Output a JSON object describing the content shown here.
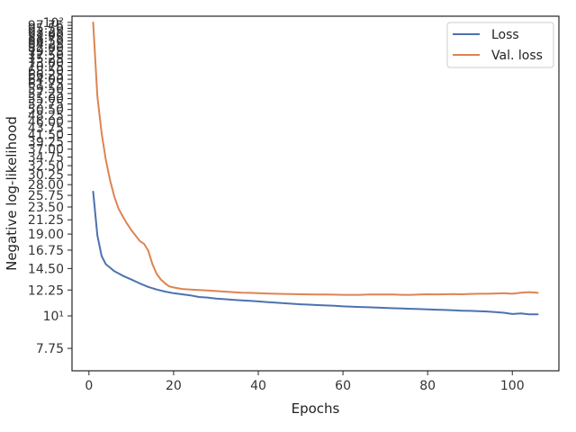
{
  "chart_data": {
    "type": "line",
    "xlabel": "Epochs",
    "ylabel": "Negative log-likelihood",
    "xlim": [
      -4,
      111
    ],
    "ylim": [
      6.5,
      105
    ],
    "yscale": "log",
    "grid": false,
    "legend_position": "top-right",
    "x_ticks": [
      "0",
      "20",
      "40",
      "60",
      "80",
      "100"
    ],
    "y_ticks": [
      "7.75",
      "10¹",
      "12.25",
      "14.50",
      "16.75",
      "19.00",
      "21.25",
      "23.50",
      "25.75",
      "28.00",
      "30.25",
      "32.50",
      "34.75",
      "37.00",
      "39.25",
      "41.50",
      "43.75",
      "46.00",
      "48.25",
      "50.50",
      "52.75",
      "55.00",
      "57.25",
      "59.50",
      "61.75",
      "64.00",
      "66.25",
      "68.50",
      "70.75",
      "73.00",
      "75.25",
      "77.50",
      "79.75",
      "82.00",
      "84.25",
      "86.50",
      "88.75",
      "91.00",
      "93.25",
      "95.50",
      "97.75",
      "10²"
    ],
    "y_tick_values": [
      7.75,
      10,
      12.25,
      14.5,
      16.75,
      19,
      21.25,
      23.5,
      25.75,
      28,
      30.25,
      32.5,
      34.75,
      37,
      39.25,
      41.5,
      43.75,
      46,
      48.25,
      50.5,
      52.75,
      55,
      57.25,
      59.5,
      61.75,
      64,
      66.25,
      68.5,
      70.75,
      73,
      75.25,
      77.5,
      79.75,
      82,
      84.25,
      86.5,
      88.75,
      91,
      93.25,
      95.5,
      97.75,
      100
    ],
    "series": [
      {
        "name": "Loss",
        "color": "#4c72b0",
        "x": [
          1,
          2,
          3,
          4,
          5,
          6,
          8,
          10,
          12,
          14,
          16,
          18,
          20,
          22,
          24,
          26,
          28,
          30,
          32,
          34,
          36,
          38,
          40,
          42,
          44,
          46,
          48,
          50,
          52,
          54,
          56,
          58,
          60,
          62,
          64,
          66,
          68,
          70,
          72,
          74,
          76,
          78,
          80,
          82,
          84,
          86,
          88,
          90,
          92,
          94,
          96,
          98,
          100,
          102,
          104,
          106
        ],
        "y": [
          26.5,
          18.8,
          16.0,
          15.0,
          14.6,
          14.2,
          13.7,
          13.3,
          12.9,
          12.55,
          12.3,
          12.1,
          11.95,
          11.85,
          11.75,
          11.6,
          11.55,
          11.45,
          11.4,
          11.35,
          11.3,
          11.25,
          11.2,
          11.15,
          11.1,
          11.05,
          11.0,
          10.95,
          10.92,
          10.88,
          10.85,
          10.82,
          10.78,
          10.75,
          10.72,
          10.7,
          10.68,
          10.65,
          10.62,
          10.6,
          10.57,
          10.55,
          10.52,
          10.5,
          10.48,
          10.45,
          10.42,
          10.4,
          10.37,
          10.35,
          10.3,
          10.25,
          10.15,
          10.2,
          10.12,
          10.12
        ]
      },
      {
        "name": "Val. loss",
        "color": "#dd8452",
        "x": [
          1,
          2,
          3,
          4,
          5,
          6,
          7,
          8,
          9,
          10,
          11,
          12,
          13,
          14,
          15,
          16,
          17,
          18,
          19,
          20,
          22,
          24,
          26,
          28,
          30,
          32,
          34,
          36,
          38,
          40,
          42,
          44,
          46,
          48,
          50,
          52,
          54,
          56,
          58,
          60,
          62,
          64,
          66,
          68,
          70,
          72,
          74,
          76,
          78,
          80,
          82,
          84,
          86,
          88,
          90,
          92,
          94,
          96,
          98,
          100,
          102,
          104,
          106
        ],
        "y": [
          100,
          56.0,
          42.0,
          34.0,
          29.0,
          25.5,
          23.2,
          21.8,
          20.6,
          19.6,
          18.8,
          18.0,
          17.6,
          16.7,
          15.0,
          13.9,
          13.3,
          12.9,
          12.6,
          12.5,
          12.35,
          12.3,
          12.25,
          12.2,
          12.15,
          12.1,
          12.05,
          12.0,
          11.98,
          11.95,
          11.92,
          11.9,
          11.88,
          11.86,
          11.85,
          11.84,
          11.83,
          11.82,
          11.81,
          11.8,
          11.8,
          11.8,
          11.82,
          11.82,
          11.83,
          11.82,
          11.8,
          11.8,
          11.82,
          11.85,
          11.84,
          11.85,
          11.87,
          11.85,
          11.88,
          11.9,
          11.9,
          11.92,
          11.95,
          11.9,
          12.0,
          12.05,
          11.98
        ]
      }
    ]
  }
}
